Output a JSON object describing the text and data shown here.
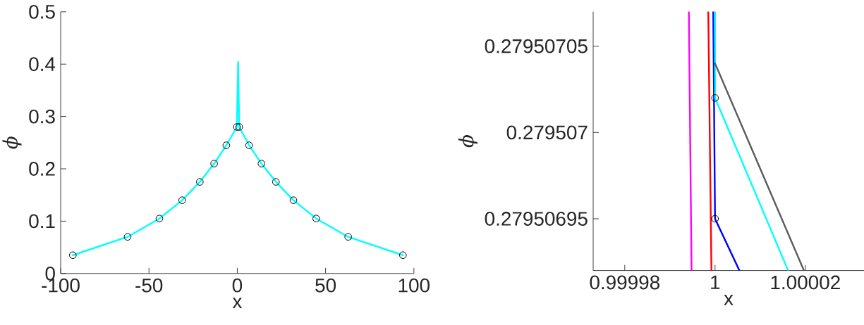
{
  "chart_data": [
    {
      "type": "line",
      "xlabel": "x",
      "ylabel": "ϕ",
      "xlim": [
        -100,
        100
      ],
      "ylim": [
        0,
        0.5
      ],
      "xticks": [
        -100,
        -50,
        0,
        50,
        100
      ],
      "yticks": [
        0,
        0.1,
        0.2,
        0.3,
        0.4,
        0.5
      ],
      "line_style": "solid",
      "series": [
        {
          "color": "#00ffff",
          "marker": "none",
          "x": [
            -93.1,
            -62.1,
            -44.1,
            -31.2,
            -21.2,
            -13.1,
            -6.2,
            -0.2,
            0.5,
            1.1,
            6.7,
            13.7,
            21.9,
            31.8,
            44.7,
            62.8,
            93.8
          ],
          "values": [
            0.035,
            0.07,
            0.105,
            0.14,
            0.175,
            0.21,
            0.245,
            0.28,
            0.404,
            0.28,
            0.245,
            0.21,
            0.175,
            0.14,
            0.105,
            0.07,
            0.035
          ]
        },
        {
          "type": "scatter",
          "color": "#000000",
          "marker": "circle",
          "x": [
            -93.1,
            -62.1,
            -44.1,
            -31.2,
            -21.2,
            -13.1,
            -6.2,
            -0.2,
            1.1,
            6.7,
            13.7,
            21.9,
            31.8,
            44.7,
            62.8,
            93.8
          ],
          "values": [
            0.035,
            0.07,
            0.105,
            0.14,
            0.175,
            0.21,
            0.245,
            0.28,
            0.28,
            0.245,
            0.21,
            0.175,
            0.14,
            0.105,
            0.07,
            0.035
          ]
        }
      ]
    },
    {
      "type": "line",
      "xlabel": "x",
      "ylabel": "ϕ",
      "xlim": [
        0.999973,
        1.000033
      ],
      "ylim": [
        0.27950692,
        0.27950707
      ],
      "xticks": [
        0.99998,
        1,
        1.00002
      ],
      "yticks": [
        0.27950695,
        0.279507,
        0.27950705
      ],
      "line_style": "solid",
      "series": [
        {
          "color": "#ff00ff",
          "marker": "none",
          "x": [
            0.9999942,
            0.9999948
          ],
          "values": [
            0.27950707,
            0.27950692
          ]
        },
        {
          "color": "#ff0000",
          "marker": "none",
          "x": [
            0.9999985,
            0.9999992
          ],
          "values": [
            0.27950707,
            0.27950692
          ]
        },
        {
          "color": "#0000ff",
          "marker": "none",
          "x": [
            0.9999996,
            1,
            1.0000054
          ],
          "values": [
            0.27950707,
            0.27950695,
            0.27950692
          ]
        },
        {
          "color": "#00ffff",
          "marker": "none",
          "x": [
            1,
            1,
            1.0000162
          ],
          "values": [
            0.27950707,
            0.27950702,
            0.27950692
          ]
        },
        {
          "color": "#595959",
          "marker": "none",
          "x": [
            1,
            1.0000197
          ],
          "values": [
            0.27950704,
            0.27950692
          ]
        },
        {
          "type": "scatter",
          "color": "#000000",
          "marker": "circle",
          "x": [
            1,
            1
          ],
          "values": [
            0.27950702,
            0.27950695
          ]
        }
      ]
    }
  ]
}
